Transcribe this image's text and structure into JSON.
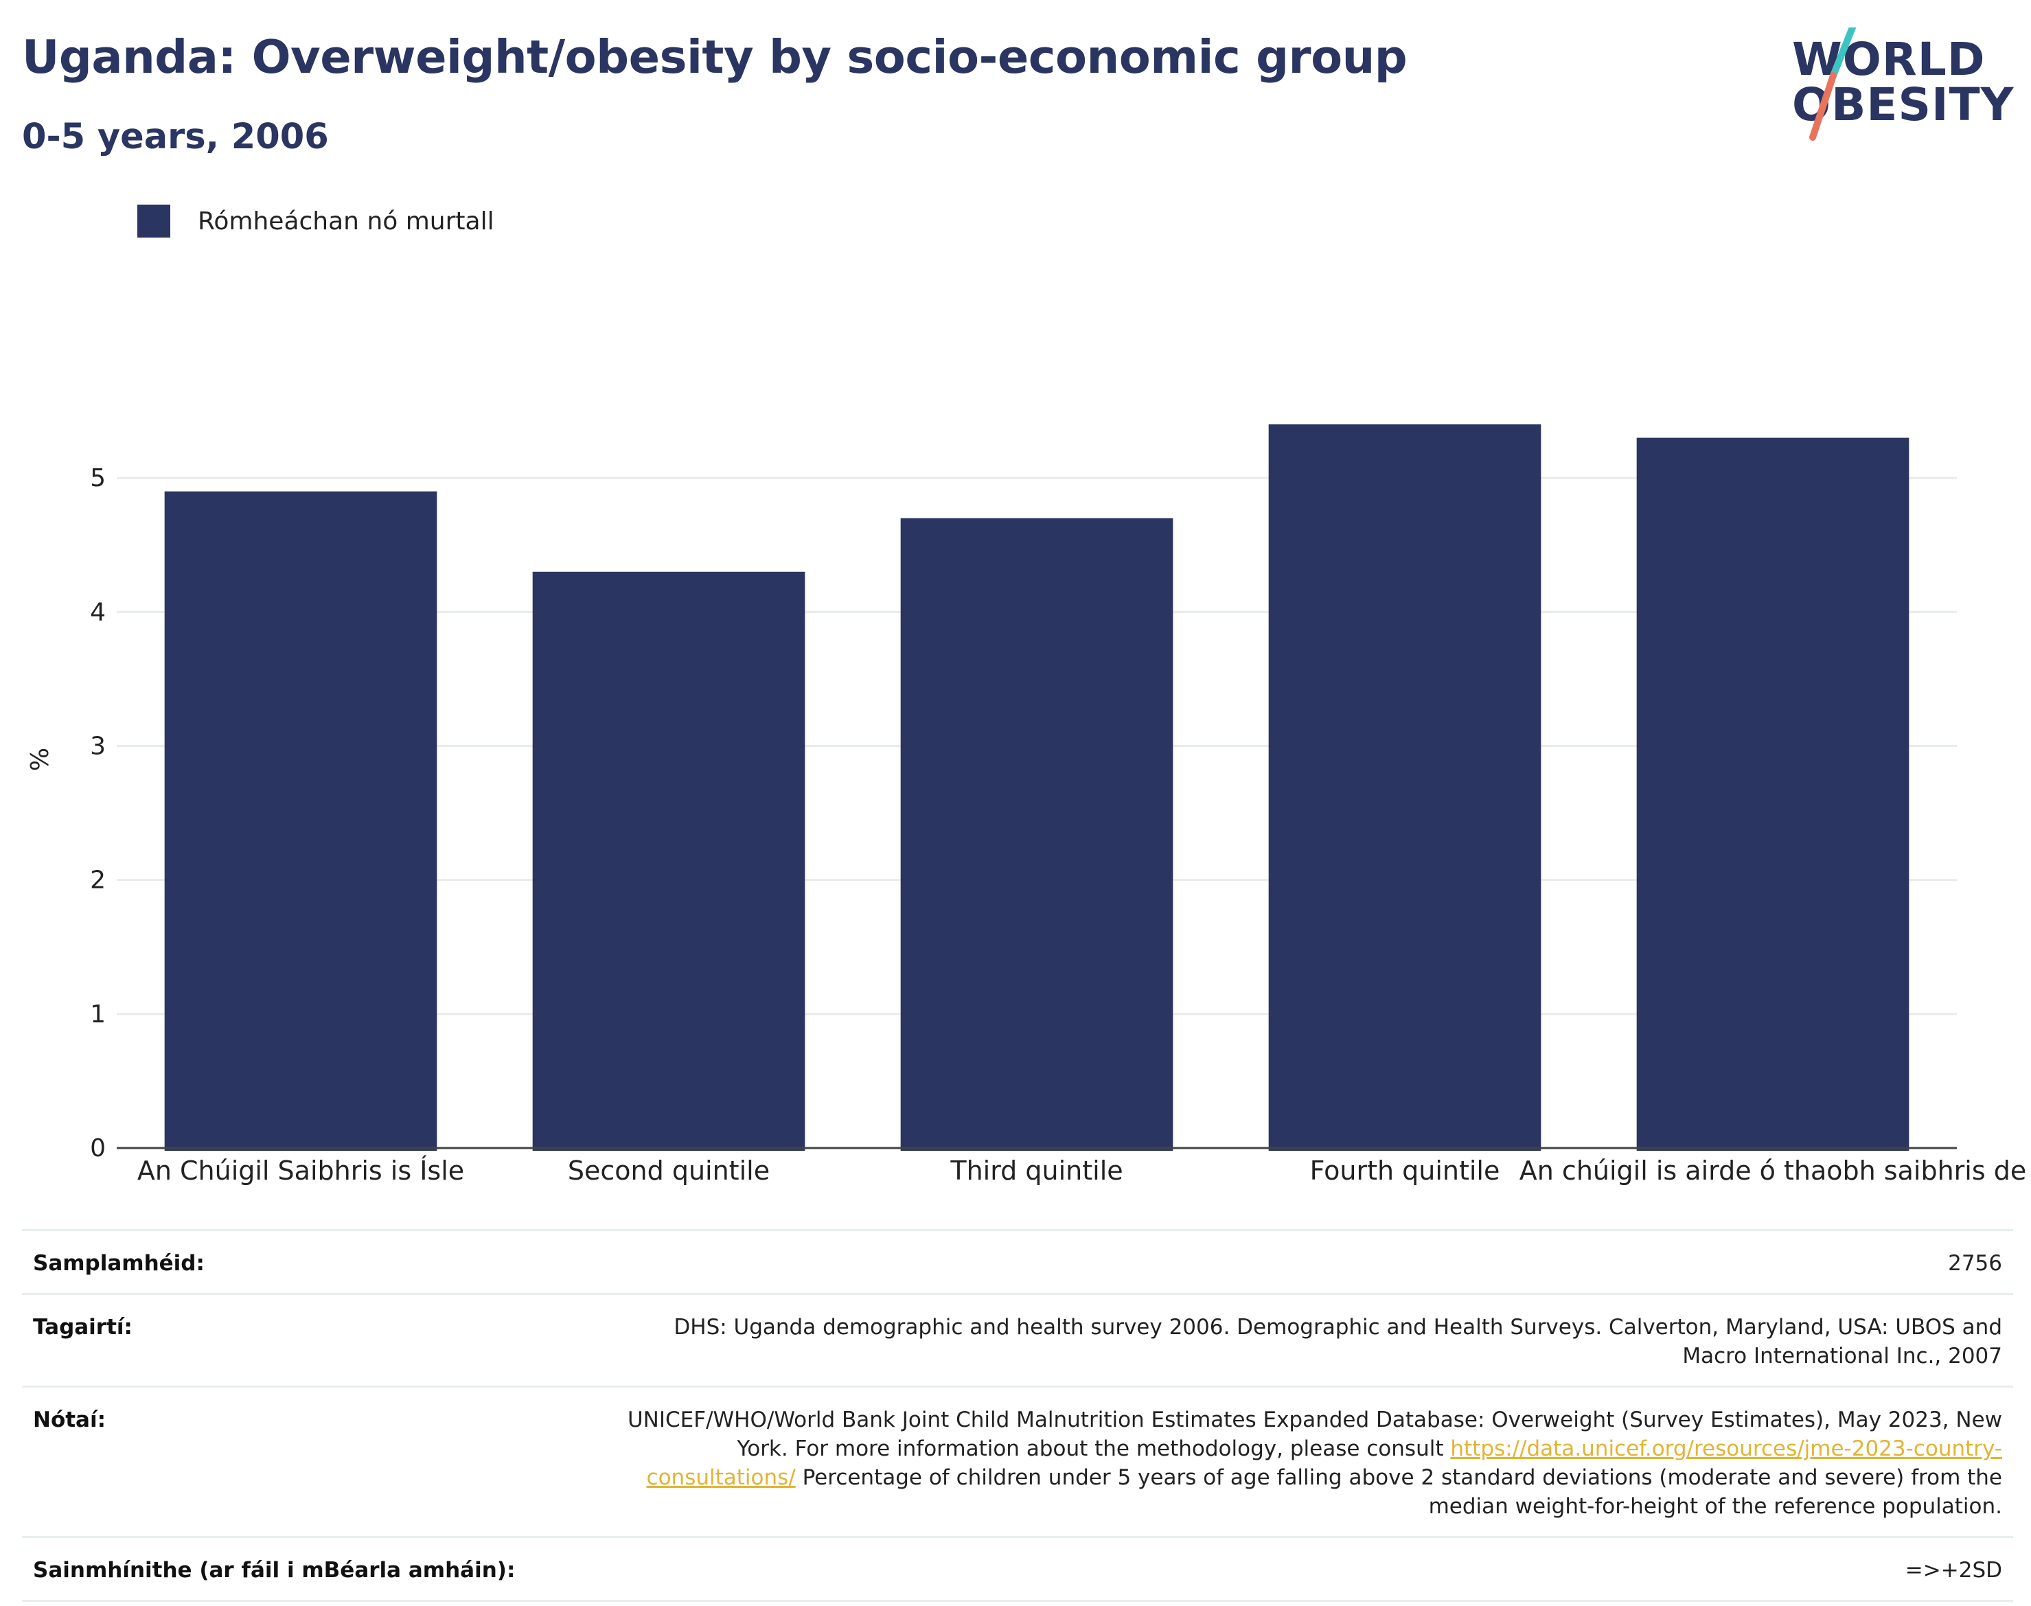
{
  "header": {
    "title": "Uganda: Overweight/obesity by socio-economic group",
    "subtitle": "0-5 years, 2006"
  },
  "logo": {
    "line1": "WORLD",
    "line2": "OBESITY",
    "colors": {
      "text": "#2a3561",
      "slash_top": "#3ec3c3",
      "slash_bottom": "#e9735d"
    }
  },
  "legend": {
    "label": "Rómheáchan nó murtall",
    "color": "#2a3561"
  },
  "chart_data": {
    "type": "bar",
    "categories": [
      "An Chúigil Saibhris is Ísle",
      "Second quintile",
      "Third quintile",
      "Fourth quintile",
      "An chúigil is airde ó thaobh saibhris de"
    ],
    "series": [
      {
        "name": "Rómheáchan nó murtall",
        "values": [
          4.9,
          4.3,
          4.7,
          5.4,
          5.3
        ],
        "color": "#2a3561"
      }
    ],
    "ylabel": "%",
    "ylim": [
      0,
      5.8
    ],
    "yticks": [
      0,
      1,
      2,
      3,
      4,
      5
    ],
    "grid": true,
    "legend_position": "top-left"
  },
  "meta": {
    "sample_label": "Samplamhéid:",
    "sample_value": "2756",
    "references_label": "Tagairtí:",
    "references_value": "DHS: Uganda demographic and health survey 2006. Demographic and Health Surveys. Calverton, Maryland, USA: UBOS and Macro International Inc., 2007",
    "notes_label": "Nótaí:",
    "notes_text_before": "UNICEF/WHO/World Bank Joint Child Malnutrition Estimates Expanded Database: Overweight (Survey Estimates), May 2023, New York. For more information about the methodology, please consult",
    "notes_link": "https://data.unicef.org/resources/jme-2023-country-consultations/",
    "notes_text_after": "Percentage of children under 5 years of age falling above 2 standard deviations (moderate and severe) from the median weight-for-height of the reference population.",
    "definitions_label": "Sainmhínithe (ar fáil i mBéarla amháin):",
    "definitions_value": "=>+2SD"
  }
}
